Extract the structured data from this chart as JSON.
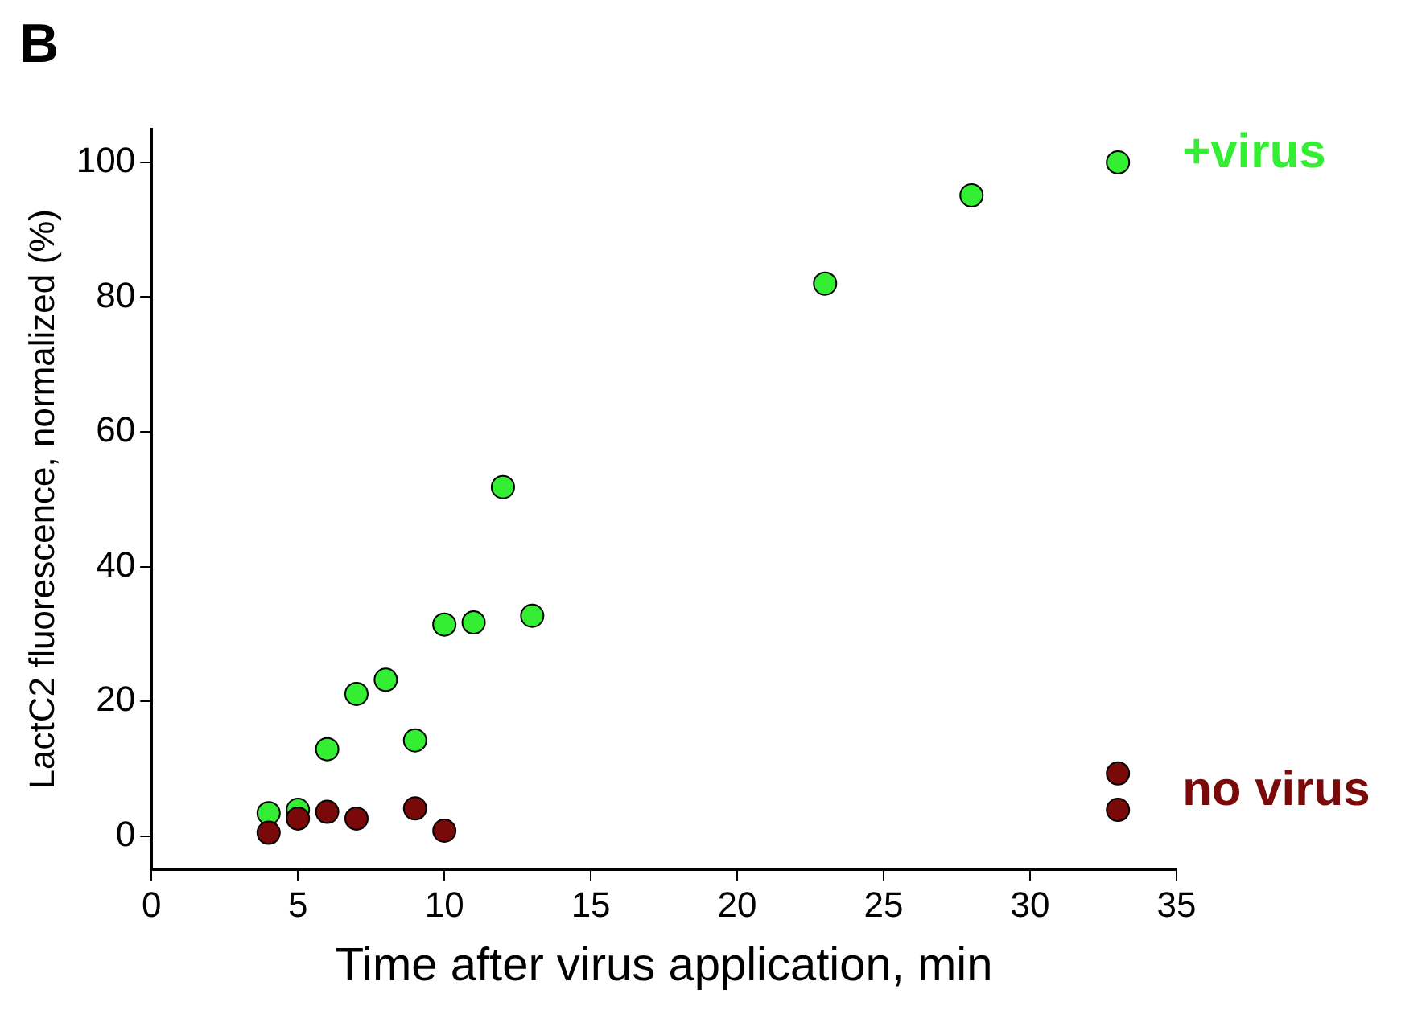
{
  "chart_data": {
    "type": "scatter",
    "xlabel": "Time after virus application, min",
    "ylabel": "LactC2 fluorescence, normalized (%)",
    "annotations": [
      "B"
    ],
    "xlim": [
      0,
      35
    ],
    "xticks": [
      0,
      5,
      10,
      15,
      20,
      25,
      30,
      35
    ],
    "ylim": [
      -5,
      105
    ],
    "yticks": [
      0,
      20,
      40,
      60,
      80,
      100
    ],
    "grid": false,
    "legend": false,
    "marker": "circle",
    "series": [
      {
        "name": "+virus",
        "color": "#33ee33",
        "x": [
          4,
          5,
          6,
          7,
          8,
          9,
          10,
          11,
          12,
          13,
          23,
          28,
          33
        ],
        "values": [
          3.4,
          3.9,
          12.9,
          21.1,
          23.2,
          14.2,
          31.4,
          31.7,
          51.8,
          32.7,
          82,
          95.1,
          100
        ]
      },
      {
        "name": "no virus",
        "color": "#7a0a0a",
        "x": [
          4,
          5,
          6,
          7,
          9,
          10,
          33,
          33
        ],
        "values": [
          0.5,
          2.6,
          3.6,
          2.6,
          4.1,
          0.8,
          9.3,
          3.9
        ]
      }
    ]
  }
}
